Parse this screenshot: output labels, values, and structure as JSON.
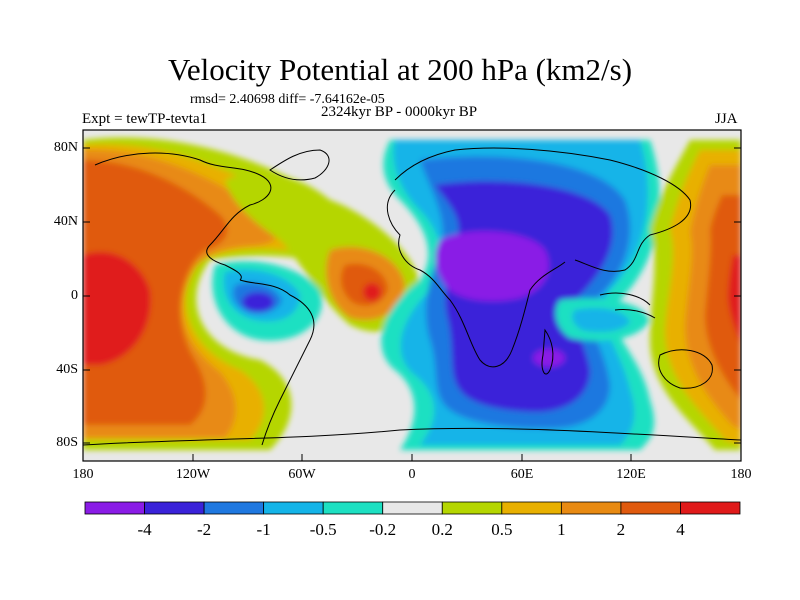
{
  "title": "Velocity Potential at 200 hPa (km2/s)",
  "stats_line": "rmsd= 2.40698 diff= -7.64162e-05",
  "experiment": "Expt = tewTP-tevta1",
  "period": "2324kyr BP - 0000kyr BP",
  "season": "JJA",
  "lat_labels": [
    "80N",
    "40N",
    "0",
    "40S",
    "80S"
  ],
  "lon_labels": [
    "180",
    "120W",
    "60W",
    "0",
    "60E",
    "120E",
    "180"
  ],
  "colorbar": {
    "colors": [
      "#8a1ce6",
      "#3a22d9",
      "#1f78e0",
      "#14b4e8",
      "#1de0c2",
      "#e8e8e8",
      "#b5d600",
      "#e8b000",
      "#e88a12",
      "#e05a0e",
      "#e01a1a"
    ],
    "labels": [
      "-4",
      "-2",
      "-1",
      "-0.5",
      "-0.2",
      "0.2",
      "0.5",
      "1",
      "2",
      "4"
    ]
  }
}
